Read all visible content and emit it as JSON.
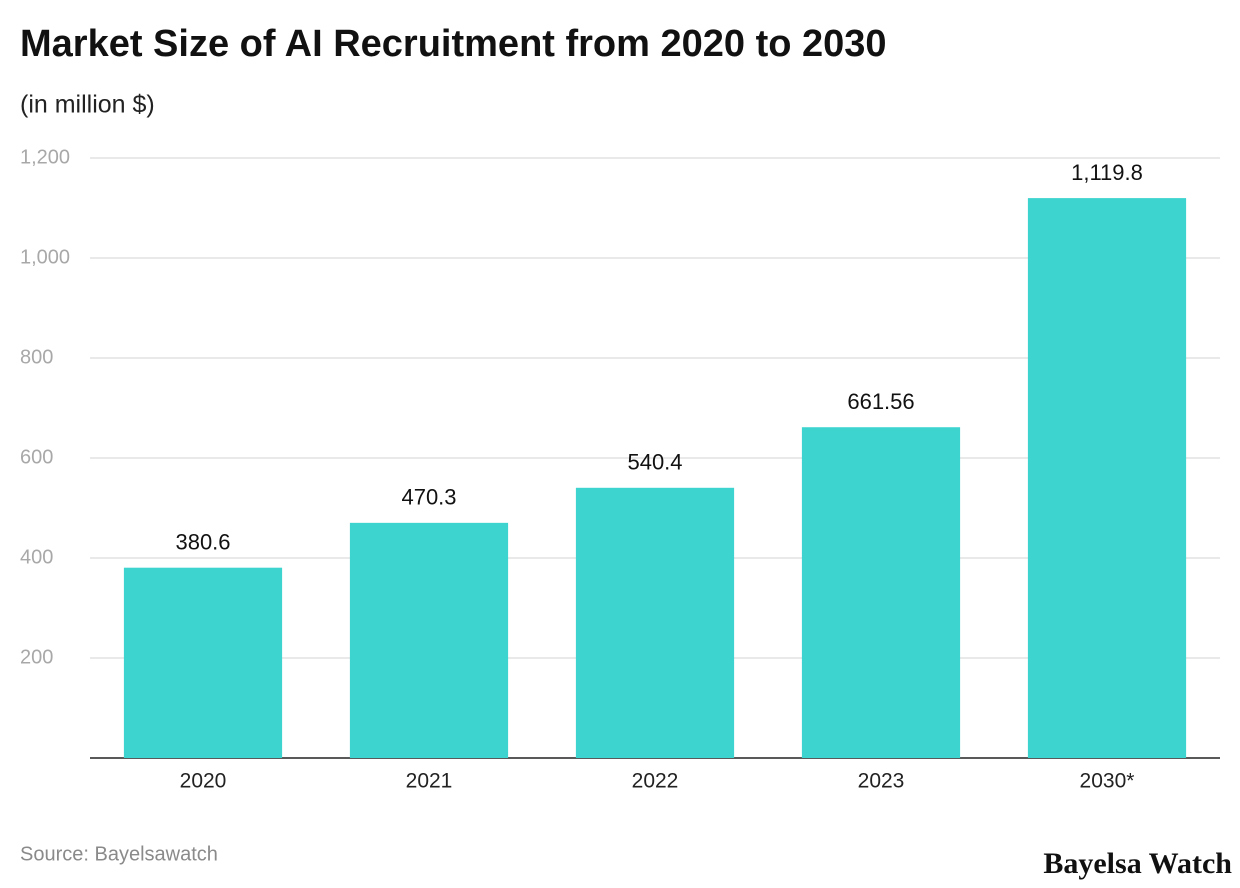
{
  "chart_data": {
    "type": "bar",
    "title": "Market Size of AI Recruitment from 2020 to 2030",
    "subtitle": "(in million $)",
    "categories": [
      "2020",
      "2021",
      "2022",
      "2023",
      "2030*"
    ],
    "values": [
      380.6,
      470.3,
      540.4,
      661.56,
      1119.8
    ],
    "value_labels": [
      "380.6",
      "470.3",
      "540.4",
      "661.56",
      "1,119.8"
    ],
    "color": "#3dd4cf",
    "ylim": [
      0,
      1200
    ],
    "yticks": [
      200,
      400,
      600,
      800,
      {
        "value": 1000,
        "label": "1,000"
      },
      {
        "value": 1200,
        "label": "1,200"
      }
    ],
    "grid": true,
    "source": "Source: Bayelsawatch",
    "brand": "Bayelsa Watch"
  }
}
